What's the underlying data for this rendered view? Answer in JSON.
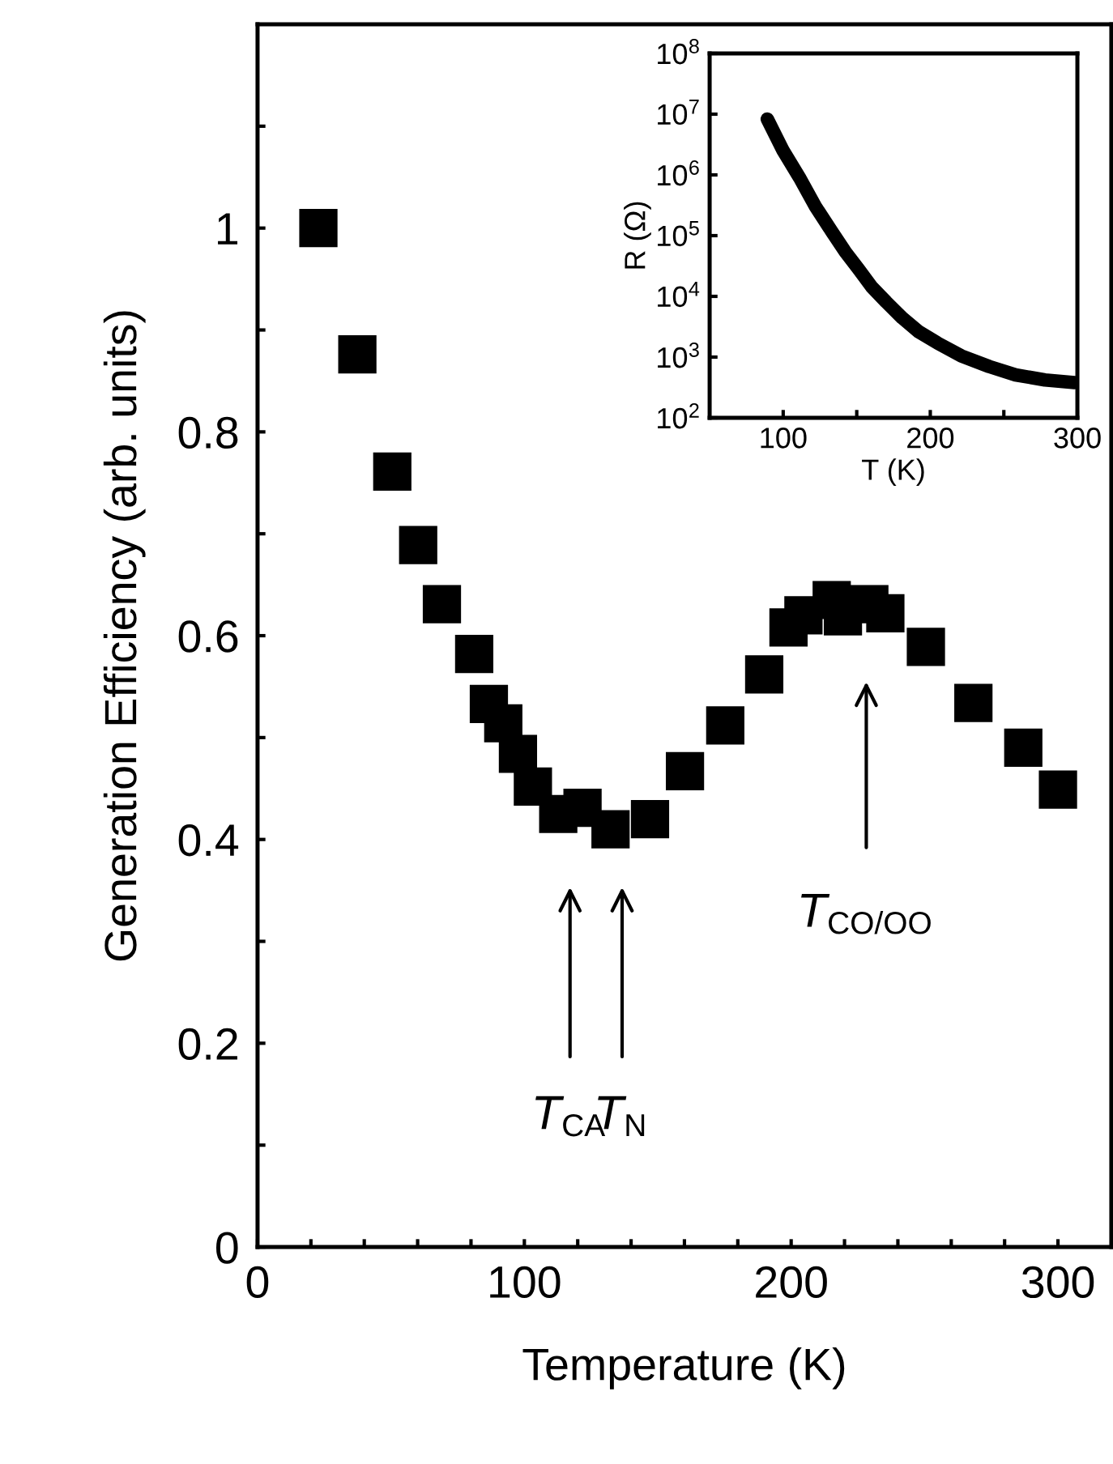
{
  "chart_data": [
    {
      "type": "scatter",
      "xlabel": "Temperature (K)",
      "ylabel": "Generation Efficiency (arb. units)",
      "xlim": [
        0,
        320
      ],
      "ylim": [
        0,
        1.2
      ],
      "xticks": [
        0,
        {
          "value": 20,
          "label": null
        },
        {
          "value": 40,
          "label": null
        },
        {
          "value": 60,
          "label": null
        },
        {
          "value": 80,
          "label": null
        },
        100,
        {
          "value": 120,
          "label": null
        },
        {
          "value": 140,
          "label": null
        },
        {
          "value": 160,
          "label": null
        },
        {
          "value": 180,
          "label": null
        },
        200,
        {
          "value": 220,
          "label": null
        },
        {
          "value": 240,
          "label": null
        },
        {
          "value": 260,
          "label": null
        },
        {
          "value": 280,
          "label": null
        },
        300
      ],
      "yticks": [
        0,
        {
          "value": 0.1,
          "label": null
        },
        0.2,
        {
          "value": 0.3,
          "label": null
        },
        0.4,
        {
          "value": 0.5,
          "label": null
        },
        0.6,
        {
          "value": 0.7,
          "label": null
        },
        0.8,
        {
          "value": 0.9,
          "label": null
        },
        1,
        {
          "value": 1.1,
          "label": null
        }
      ],
      "marker": "square",
      "grid": false,
      "legend": false,
      "series": [
        {
          "color": "#000000",
          "x": [
            22.8,
            37.4,
            50.5,
            60.2,
            69.1,
            81.2,
            86.7,
            92.1,
            97.6,
            103.2,
            112.7,
            121.8,
            132.3,
            147.1,
            160.2,
            175.3,
            189.9,
            199,
            204.6,
            215.2,
            219.4,
            229.3,
            235.3,
            250.5,
            268.3,
            287,
            300
          ],
          "values": [
            1.0,
            0.876,
            0.761,
            0.689,
            0.631,
            0.582,
            0.533,
            0.514,
            0.484,
            0.452,
            0.425,
            0.431,
            0.41,
            0.42,
            0.467,
            0.512,
            0.562,
            0.608,
            0.62,
            0.635,
            0.619,
            0.631,
            0.622,
            0.589,
            0.534,
            0.49,
            0.449
          ]
        }
      ],
      "annotations": [
        "T$_{CA}$",
        "T$_{N}$",
        "T$_{CO/OO}$"
      ]
    },
    {
      "type": "line",
      "xlabel": "T (K)",
      "ylabel": "R (Ω)",
      "log": "y",
      "xlim": [
        50,
        300
      ],
      "ylim": [
        100,
        100000000
      ],
      "xticks": [
        100,
        {
          "value": 150,
          "label": null
        },
        200,
        {
          "value": 250,
          "label": null
        },
        300
      ],
      "yticks": [
        {
          "value": 100,
          "label": "10$^{2}$"
        },
        {
          "value": 1000,
          "label": "10$^{3}$"
        },
        {
          "value": 10000,
          "label": "10$^{4}$"
        },
        {
          "value": 100000,
          "label": "10$^{5}$"
        },
        {
          "value": 1000000,
          "label": "10$^{6}$"
        },
        {
          "value": 10000000,
          "label": "10$^{7}$"
        },
        {
          "value": 100000000,
          "label": "10$^{8}$"
        }
      ],
      "marker": "none",
      "line_style": "solid",
      "grid": false,
      "legend": false,
      "series": [
        {
          "color": "#000000",
          "x": [
            89.2,
            100,
            111,
            122,
            133,
            142,
            151.5,
            160,
            170,
            181,
            192,
            205,
            221,
            240,
            258,
            278,
            298
          ],
          "values": [
            8300000,
            2500000,
            910000,
            300000,
            117000,
            55000,
            27500,
            14500,
            8100,
            4400,
            2630,
            1700,
            1050,
            700,
            510,
            420,
            380
          ]
        }
      ]
    }
  ]
}
